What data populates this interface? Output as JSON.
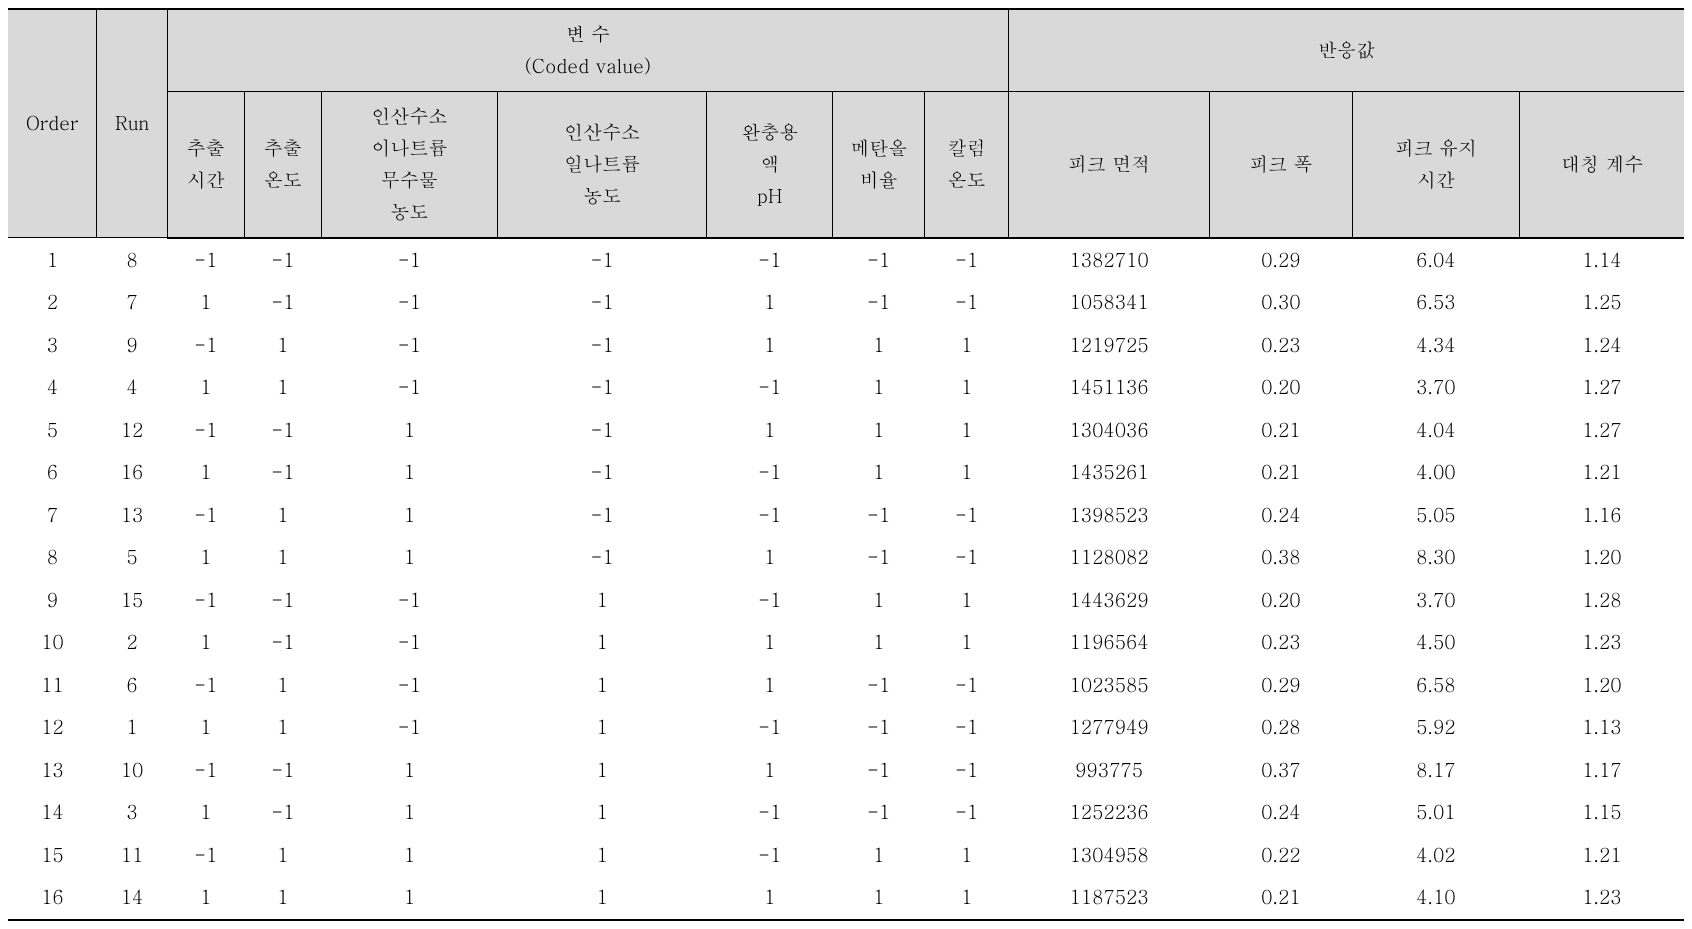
{
  "table": {
    "type": "table",
    "background_color": "#ffffff",
    "header_bg": "#d9d9d9",
    "border_color": "#000000",
    "font_family": "Batang",
    "header_fontsize": 19,
    "body_fontsize": 19,
    "columns": {
      "order": {
        "label": "Order",
        "width_pct": 5.3
      },
      "run": {
        "label": "Run",
        "width_pct": 4.2
      },
      "vars_group": {
        "label_line1": "변 수",
        "label_line2": "(Coded value)"
      },
      "resp_group": {
        "label": "반응값"
      },
      "var1": {
        "label_line1": "추출",
        "label_line2": "시간",
        "width_pct": 4.6
      },
      "var2": {
        "label_line1": "추출",
        "label_line2": "온도",
        "width_pct": 4.6
      },
      "var3": {
        "label_line1": "인산수소",
        "label_line2": "이나트륨",
        "label_line3": "무수물",
        "label_line4": "농도",
        "width_pct": 10.5
      },
      "var4": {
        "label_line1": "인산수소",
        "label_line2": "일나트륨",
        "label_line3": "농도",
        "width_pct": 12.5
      },
      "var5": {
        "label_line1": "완충용",
        "label_line2": "액",
        "label_line3": "pH",
        "width_pct": 7.5
      },
      "var6": {
        "label_line1": "메탄올",
        "label_line2": "비율",
        "width_pct": 5.5
      },
      "var7": {
        "label_line1": "칼럼",
        "label_line2": "온도",
        "width_pct": 5.0
      },
      "resp1": {
        "label": "피크 면적",
        "width_pct": 12.0
      },
      "resp2": {
        "label": "피크 폭",
        "width_pct": 8.5
      },
      "resp3": {
        "label_line1": "피크 유지",
        "label_line2": "시간",
        "width_pct": 10.0
      },
      "resp4": {
        "label": "대칭 계수",
        "width_pct": 9.8
      }
    },
    "rows": [
      {
        "order": "1",
        "run": "8",
        "v1": "-1",
        "v2": "-1",
        "v3": "-1",
        "v4": "-1",
        "v5": "-1",
        "v6": "-1",
        "v7": "-1",
        "r1": "1382710",
        "r2": "0.29",
        "r3": "6.04",
        "r4": "1.14"
      },
      {
        "order": "2",
        "run": "7",
        "v1": "1",
        "v2": "-1",
        "v3": "-1",
        "v4": "-1",
        "v5": "1",
        "v6": "-1",
        "v7": "-1",
        "r1": "1058341",
        "r2": "0.30",
        "r3": "6.53",
        "r4": "1.25"
      },
      {
        "order": "3",
        "run": "9",
        "v1": "-1",
        "v2": "1",
        "v3": "-1",
        "v4": "-1",
        "v5": "1",
        "v6": "1",
        "v7": "1",
        "r1": "1219725",
        "r2": "0.23",
        "r3": "4.34",
        "r4": "1.24"
      },
      {
        "order": "4",
        "run": "4",
        "v1": "1",
        "v2": "1",
        "v3": "-1",
        "v4": "-1",
        "v5": "-1",
        "v6": "1",
        "v7": "1",
        "r1": "1451136",
        "r2": "0.20",
        "r3": "3.70",
        "r4": "1.27"
      },
      {
        "order": "5",
        "run": "12",
        "v1": "-1",
        "v2": "-1",
        "v3": "1",
        "v4": "-1",
        "v5": "1",
        "v6": "1",
        "v7": "1",
        "r1": "1304036",
        "r2": "0.21",
        "r3": "4.04",
        "r4": "1.27"
      },
      {
        "order": "6",
        "run": "16",
        "v1": "1",
        "v2": "-1",
        "v3": "1",
        "v4": "-1",
        "v5": "-1",
        "v6": "1",
        "v7": "1",
        "r1": "1435261",
        "r2": "0.21",
        "r3": "4.00",
        "r4": "1.21"
      },
      {
        "order": "7",
        "run": "13",
        "v1": "-1",
        "v2": "1",
        "v3": "1",
        "v4": "-1",
        "v5": "-1",
        "v6": "-1",
        "v7": "-1",
        "r1": "1398523",
        "r2": "0.24",
        "r3": "5.05",
        "r4": "1.16"
      },
      {
        "order": "8",
        "run": "5",
        "v1": "1",
        "v2": "1",
        "v3": "1",
        "v4": "-1",
        "v5": "1",
        "v6": "-1",
        "v7": "-1",
        "r1": "1128082",
        "r2": "0.38",
        "r3": "8.30",
        "r4": "1.20"
      },
      {
        "order": "9",
        "run": "15",
        "v1": "-1",
        "v2": "-1",
        "v3": "-1",
        "v4": "1",
        "v5": "-1",
        "v6": "1",
        "v7": "1",
        "r1": "1443629",
        "r2": "0.20",
        "r3": "3.70",
        "r4": "1.28"
      },
      {
        "order": "10",
        "run": "2",
        "v1": "1",
        "v2": "-1",
        "v3": "-1",
        "v4": "1",
        "v5": "1",
        "v6": "1",
        "v7": "1",
        "r1": "1196564",
        "r2": "0.23",
        "r3": "4.50",
        "r4": "1.23"
      },
      {
        "order": "11",
        "run": "6",
        "v1": "-1",
        "v2": "1",
        "v3": "-1",
        "v4": "1",
        "v5": "1",
        "v6": "-1",
        "v7": "-1",
        "r1": "1023585",
        "r2": "0.29",
        "r3": "6.58",
        "r4": "1.20"
      },
      {
        "order": "12",
        "run": "1",
        "v1": "1",
        "v2": "1",
        "v3": "-1",
        "v4": "1",
        "v5": "-1",
        "v6": "-1",
        "v7": "-1",
        "r1": "1277949",
        "r2": "0.28",
        "r3": "5.92",
        "r4": "1.13"
      },
      {
        "order": "13",
        "run": "10",
        "v1": "-1",
        "v2": "-1",
        "v3": "1",
        "v4": "1",
        "v5": "1",
        "v6": "-1",
        "v7": "-1",
        "r1": "993775",
        "r2": "0.37",
        "r3": "8.17",
        "r4": "1.17"
      },
      {
        "order": "14",
        "run": "3",
        "v1": "1",
        "v2": "-1",
        "v3": "1",
        "v4": "1",
        "v5": "-1",
        "v6": "-1",
        "v7": "-1",
        "r1": "1252236",
        "r2": "0.24",
        "r3": "5.01",
        "r4": "1.15"
      },
      {
        "order": "15",
        "run": "11",
        "v1": "-1",
        "v2": "1",
        "v3": "1",
        "v4": "1",
        "v5": "-1",
        "v6": "1",
        "v7": "1",
        "r1": "1304958",
        "r2": "0.22",
        "r3": "4.02",
        "r4": "1.21"
      },
      {
        "order": "16",
        "run": "14",
        "v1": "1",
        "v2": "1",
        "v3": "1",
        "v4": "1",
        "v5": "1",
        "v6": "1",
        "v7": "1",
        "r1": "1187523",
        "r2": "0.21",
        "r3": "4.10",
        "r4": "1.23"
      }
    ]
  }
}
